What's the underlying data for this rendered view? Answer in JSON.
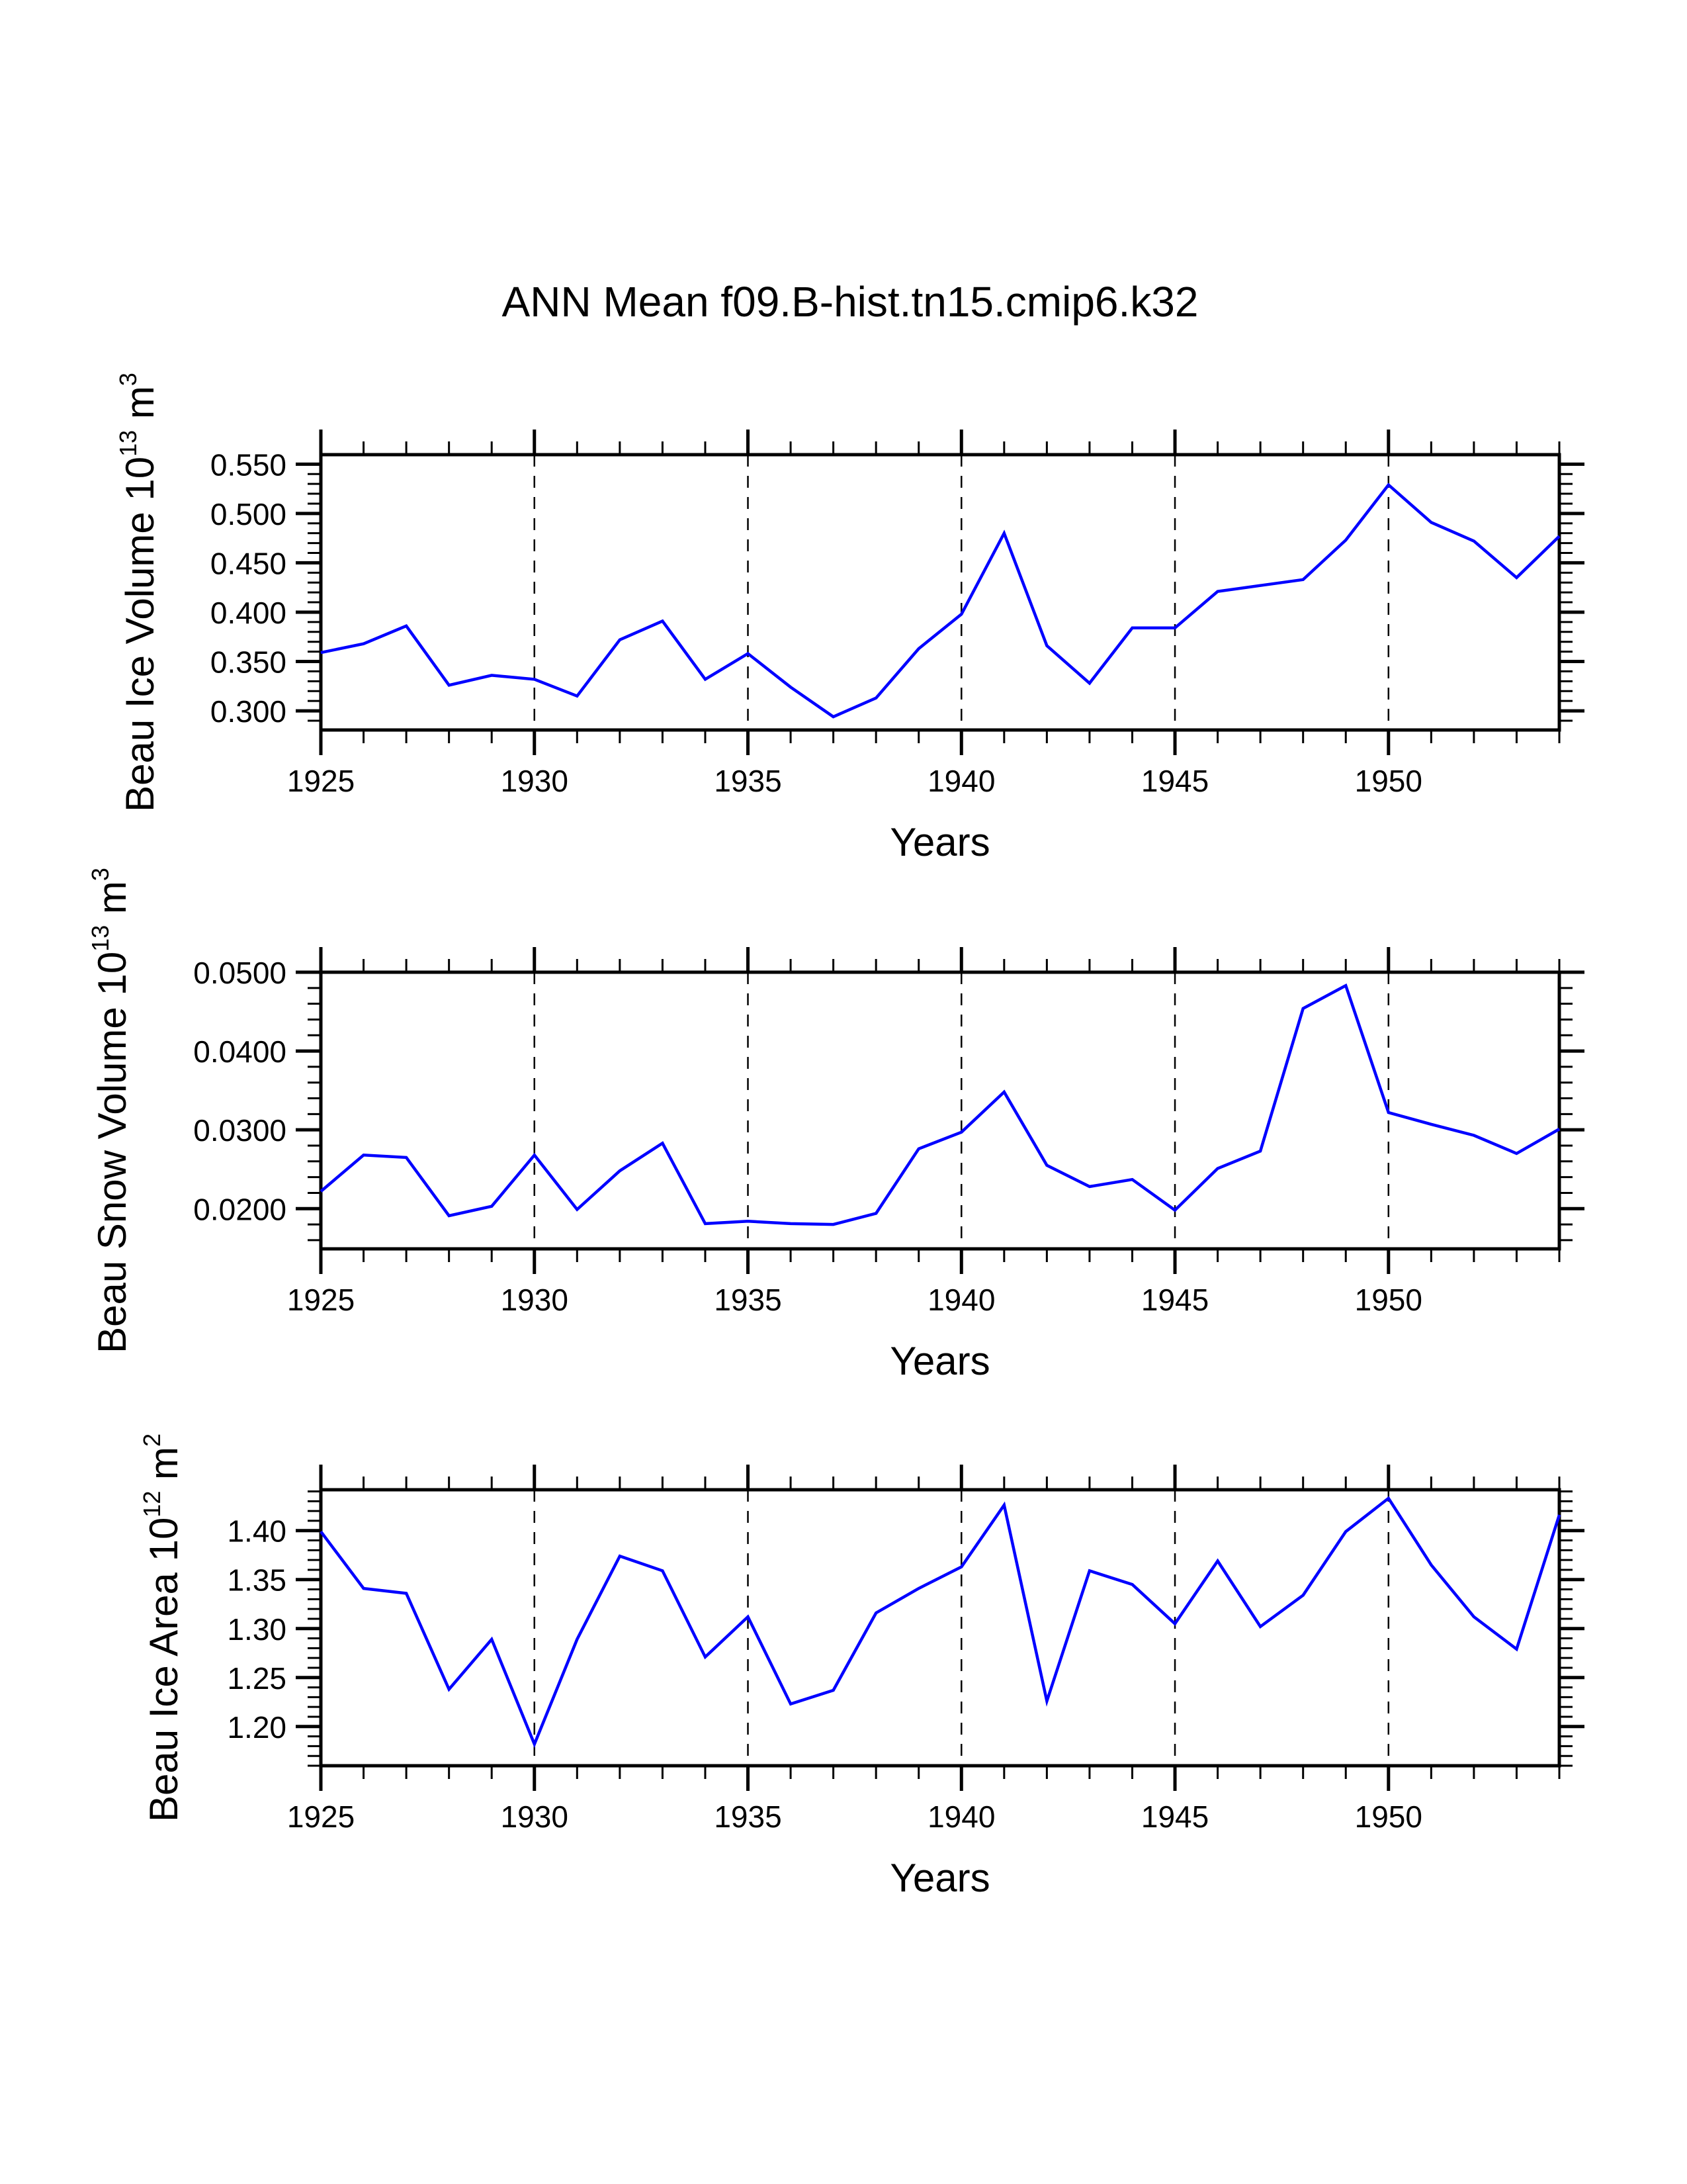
{
  "page": {
    "title": "ANN Mean f09.B-hist.tn15.cmip6.k32",
    "line_color": "#0000ff"
  },
  "chart_data": [
    {
      "type": "line",
      "title": "ANN Mean f09.B-hist.tn15.cmip6.k32",
      "xlabel": "Years",
      "ylabel": "Beau Ice Volume 10^13 m^3",
      "ylabel_parts": {
        "main": "Beau Ice Volume 10",
        "exp": "13",
        "unit": " m",
        "unit_exp": "3"
      },
      "x": [
        1925,
        1926,
        1927,
        1928,
        1929,
        1930,
        1931,
        1932,
        1933,
        1934,
        1935,
        1936,
        1937,
        1938,
        1939,
        1940,
        1941,
        1942,
        1943,
        1944,
        1945,
        1946,
        1947,
        1948,
        1949,
        1950,
        1951,
        1952,
        1953,
        1954
      ],
      "series": [
        {
          "name": "Beau Ice Volume",
          "values": [
            0.359,
            0.368,
            0.386,
            0.326,
            0.336,
            0.332,
            0.315,
            0.372,
            0.391,
            0.332,
            0.358,
            0.324,
            0.294,
            0.313,
            0.363,
            0.398,
            0.48,
            0.366,
            0.328,
            0.384,
            0.384,
            0.421,
            0.427,
            0.433,
            0.473,
            0.529,
            0.491,
            0.472,
            0.435,
            0.477
          ]
        }
      ],
      "xlim": [
        1925,
        1954
      ],
      "ylim": [
        0.2806,
        0.5596
      ],
      "x_major_ticks": [
        1925,
        1930,
        1935,
        1940,
        1945,
        1950
      ],
      "x_tick_labels": [
        "1925",
        "1930",
        "1935",
        "1940",
        "1945",
        "1950"
      ],
      "y_major_ticks": [
        0.3,
        0.35,
        0.4,
        0.45,
        0.5,
        0.55
      ],
      "y_tick_labels": [
        "0.300",
        "0.350",
        "0.400",
        "0.450",
        "0.500",
        "0.550"
      ],
      "y_minor_step": 0.01,
      "grid": "vertical dashed at major x ticks",
      "legend": "none"
    },
    {
      "type": "line",
      "xlabel": "Years",
      "ylabel": "Beau Snow Volume 10^13 m^3",
      "ylabel_parts": {
        "main": "Beau Snow Volume 10",
        "exp": "13",
        "unit": " m",
        "unit_exp": "3"
      },
      "x": [
        1925,
        1926,
        1927,
        1928,
        1929,
        1930,
        1931,
        1932,
        1933,
        1934,
        1935,
        1936,
        1937,
        1938,
        1939,
        1940,
        1941,
        1942,
        1943,
        1944,
        1945,
        1946,
        1947,
        1948,
        1949,
        1950,
        1951,
        1952,
        1953,
        1954
      ],
      "series": [
        {
          "name": "Beau Snow Volume",
          "values": [
            0.0222,
            0.0268,
            0.0265,
            0.0191,
            0.0203,
            0.0268,
            0.0199,
            0.0248,
            0.0283,
            0.0181,
            0.0184,
            0.0181,
            0.018,
            0.0194,
            0.0276,
            0.0297,
            0.0348,
            0.0255,
            0.0228,
            0.0237,
            0.0198,
            0.0251,
            0.0273,
            0.0454,
            0.0483,
            0.0322,
            0.0307,
            0.0293,
            0.027,
            0.0301
          ]
        }
      ],
      "xlim": [
        1925,
        1954
      ],
      "ylim": [
        0.0149,
        0.05
      ],
      "x_major_ticks": [
        1925,
        1930,
        1935,
        1940,
        1945,
        1950
      ],
      "x_tick_labels": [
        "1925",
        "1930",
        "1935",
        "1940",
        "1945",
        "1950"
      ],
      "y_major_ticks": [
        0.02,
        0.03,
        0.04,
        0.05
      ],
      "y_tick_labels": [
        "0.0200",
        "0.0300",
        "0.0400",
        "0.0500"
      ],
      "y_minor_step": 0.002,
      "grid": "vertical dashed at major x ticks",
      "legend": "none"
    },
    {
      "type": "line",
      "xlabel": "Years",
      "ylabel": "Beau Ice Area 10^12 m^2",
      "ylabel_parts": {
        "main": "Beau Ice Area 10",
        "exp": "12",
        "unit": " m",
        "unit_exp": "2"
      },
      "x": [
        1925,
        1926,
        1927,
        1928,
        1929,
        1930,
        1931,
        1932,
        1933,
        1934,
        1935,
        1936,
        1937,
        1938,
        1939,
        1940,
        1941,
        1942,
        1943,
        1944,
        1945,
        1946,
        1947,
        1948,
        1949,
        1950,
        1951,
        1952,
        1953,
        1954
      ],
      "series": [
        {
          "name": "Beau Ice Area",
          "values": [
            1.399,
            1.341,
            1.336,
            1.238,
            1.289,
            1.182,
            1.289,
            1.374,
            1.359,
            1.271,
            1.312,
            1.223,
            1.237,
            1.316,
            1.341,
            1.363,
            1.426,
            1.226,
            1.359,
            1.345,
            1.305,
            1.369,
            1.302,
            1.334,
            1.399,
            1.433,
            1.365,
            1.312,
            1.279,
            1.416
          ]
        }
      ],
      "xlim": [
        1925,
        1954
      ],
      "ylim": [
        1.16,
        1.4417
      ],
      "x_major_ticks": [
        1925,
        1930,
        1935,
        1940,
        1945,
        1950
      ],
      "x_tick_labels": [
        "1925",
        "1930",
        "1935",
        "1940",
        "1945",
        "1950"
      ],
      "y_major_ticks": [
        1.2,
        1.25,
        1.3,
        1.35,
        1.4
      ],
      "y_tick_labels": [
        "1.20",
        "1.25",
        "1.30",
        "1.35",
        "1.40"
      ],
      "y_minor_step": 0.01,
      "grid": "vertical dashed at major x ticks",
      "legend": "none"
    }
  ]
}
